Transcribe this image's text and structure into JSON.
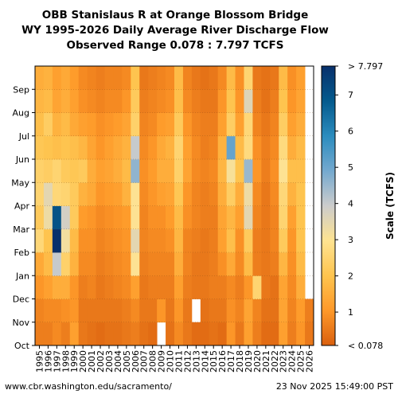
{
  "title_lines": [
    "OBB Stanislaus R at Orange Blossom Bridge",
    "WY 1995-2026 Daily Average River Discharge Flow",
    "Observed Range 0.078 : 7.797 TCFS"
  ],
  "footer": {
    "source": "www.cbr.washington.edu/sacramento/",
    "timestamp": "23 Nov 2025 15:49:00 PST"
  },
  "chart_data": {
    "type": "heatmap",
    "x": [
      "1995",
      "1996",
      "1997",
      "1998",
      "1999",
      "2000",
      "2001",
      "2002",
      "2003",
      "2004",
      "2005",
      "2006",
      "2007",
      "2008",
      "2009",
      "2010",
      "2011",
      "2012",
      "2013",
      "2014",
      "2015",
      "2016",
      "2017",
      "2018",
      "2019",
      "2020",
      "2021",
      "2022",
      "2023",
      "2024",
      "2025",
      "2026"
    ],
    "y": [
      "Oct",
      "Nov",
      "Dec",
      "Jan",
      "Feb",
      "Mar",
      "Apr",
      "May",
      "Jun",
      "Jul",
      "Aug",
      "Sep"
    ],
    "colorbar": {
      "label": "Scale (TCFS)",
      "ticks": [
        "< 0.078",
        "1",
        "2",
        "3",
        "4",
        "5",
        "6",
        "7",
        "> 7.797"
      ],
      "range": [
        0.078,
        7.797
      ],
      "colors": [
        "#d95f0e",
        "#fe9929",
        "#fec44f",
        "#fee391",
        "#cccccc",
        "#74a9cf",
        "#2b8cbe",
        "#045a8d",
        "#08306b"
      ]
    },
    "values": [
      [
        0.6,
        0.6,
        0.8,
        0.6,
        1.2,
        0.5,
        0.4,
        0.3,
        0.4,
        0.4,
        0.5,
        0.6,
        0.4,
        0.3,
        null,
        0.4,
        0.8,
        0.5,
        0.3,
        0.3,
        0.4,
        0.3,
        1.0,
        0.5,
        1.2,
        0.6,
        0.3,
        0.3,
        1.2,
        0.6,
        1.0,
        0.5
      ],
      [
        0.7,
        0.8,
        0.8,
        0.9,
        1.0,
        0.5,
        0.5,
        0.5,
        0.5,
        0.5,
        0.6,
        0.8,
        0.5,
        0.5,
        1.0,
        0.5,
        1.0,
        0.5,
        null,
        0.4,
        0.5,
        0.5,
        0.9,
        0.7,
        1.3,
        0.7,
        0.4,
        0.4,
        1.3,
        0.7,
        1.1,
        0.6
      ],
      [
        1.0,
        1.2,
        1.5,
        1.5,
        1.0,
        0.6,
        0.7,
        0.5,
        0.6,
        0.7,
        0.8,
        1.2,
        0.5,
        0.6,
        0.6,
        0.6,
        1.2,
        0.6,
        0.5,
        0.5,
        0.6,
        0.6,
        0.8,
        0.6,
        1.0,
        2.5,
        0.5,
        0.4,
        1.3,
        0.8,
        1.5,
        null
      ],
      [
        1.4,
        1.8,
        4.0,
        2.4,
        1.6,
        0.8,
        0.8,
        0.6,
        0.7,
        0.8,
        0.9,
        3.0,
        0.6,
        0.7,
        0.7,
        0.7,
        1.5,
        0.7,
        0.5,
        0.5,
        0.6,
        0.9,
        1.4,
        0.8,
        1.8,
        0.6,
        0.5,
        0.6,
        1.7,
        0.9,
        1.8,
        null
      ],
      [
        2.6,
        2.0,
        7.8,
        3.2,
        1.8,
        0.9,
        0.9,
        0.7,
        0.8,
        0.9,
        1.0,
        3.5,
        0.7,
        0.8,
        0.8,
        0.9,
        1.7,
        0.7,
        0.6,
        0.5,
        0.6,
        1.2,
        1.9,
        0.9,
        2.2,
        0.6,
        0.5,
        0.7,
        2.2,
        1.0,
        2.0,
        null
      ],
      [
        2.2,
        3.3,
        7.0,
        3.8,
        2.2,
        1.1,
        1.0,
        0.8,
        0.9,
        1.0,
        1.1,
        3.0,
        0.7,
        0.9,
        0.9,
        1.1,
        1.8,
        0.9,
        0.7,
        0.6,
        0.6,
        1.3,
        1.7,
        1.2,
        3.5,
        0.7,
        0.5,
        0.7,
        2.5,
        1.2,
        2.0,
        null
      ],
      [
        2.5,
        3.5,
        2.6,
        2.5,
        2.2,
        1.6,
        1.4,
        1.0,
        1.1,
        1.2,
        1.6,
        3.0,
        0.8,
        1.0,
        1.2,
        1.3,
        2.1,
        1.0,
        0.7,
        0.6,
        0.7,
        1.5,
        2.3,
        1.5,
        3.3,
        0.8,
        0.5,
        0.8,
        2.6,
        1.6,
        2.0,
        null
      ],
      [
        2.4,
        2.3,
        2.5,
        2.2,
        2.1,
        2.2,
        1.5,
        1.2,
        1.3,
        1.5,
        1.8,
        4.6,
        0.9,
        1.1,
        1.5,
        1.5,
        2.4,
        1.3,
        0.8,
        0.7,
        0.8,
        1.7,
        3.1,
        2.0,
        4.5,
        1.0,
        0.6,
        0.9,
        3.0,
        1.9,
        1.9,
        null
      ],
      [
        2.1,
        2.0,
        1.9,
        2.0,
        1.9,
        1.7,
        1.3,
        1.0,
        1.2,
        1.4,
        1.6,
        4.0,
        0.8,
        1.0,
        1.4,
        1.6,
        2.5,
        1.2,
        0.8,
        0.6,
        0.7,
        1.6,
        5.1,
        1.8,
        2.7,
        0.9,
        0.6,
        0.8,
        2.7,
        1.5,
        1.8,
        null
      ],
      [
        1.9,
        2.3,
        1.6,
        1.8,
        1.4,
        1.2,
        1.1,
        0.9,
        1.0,
        1.1,
        1.3,
        2.4,
        0.7,
        0.8,
        1.1,
        1.2,
        2.2,
        1.0,
        0.7,
        0.6,
        0.6,
        1.2,
        2.3,
        1.2,
        2.6,
        0.7,
        0.5,
        0.7,
        2.3,
        1.2,
        1.5,
        null
      ],
      [
        1.7,
        1.8,
        1.3,
        1.5,
        1.2,
        0.9,
        0.8,
        0.7,
        0.8,
        0.8,
        1.0,
        2.2,
        0.6,
        0.7,
        0.8,
        0.9,
        1.9,
        0.8,
        0.6,
        0.5,
        0.5,
        1.0,
        2.0,
        1.0,
        3.6,
        0.6,
        0.4,
        0.6,
        2.0,
        1.0,
        1.3,
        null
      ],
      [
        1.5,
        1.6,
        1.2,
        1.4,
        1.1,
        0.8,
        0.7,
        0.6,
        0.7,
        0.7,
        0.8,
        2.0,
        0.5,
        0.6,
        0.7,
        0.8,
        1.8,
        0.7,
        0.5,
        0.4,
        0.5,
        0.8,
        1.8,
        0.9,
        2.5,
        0.5,
        0.4,
        0.5,
        1.8,
        0.9,
        1.2,
        null
      ]
    ]
  }
}
